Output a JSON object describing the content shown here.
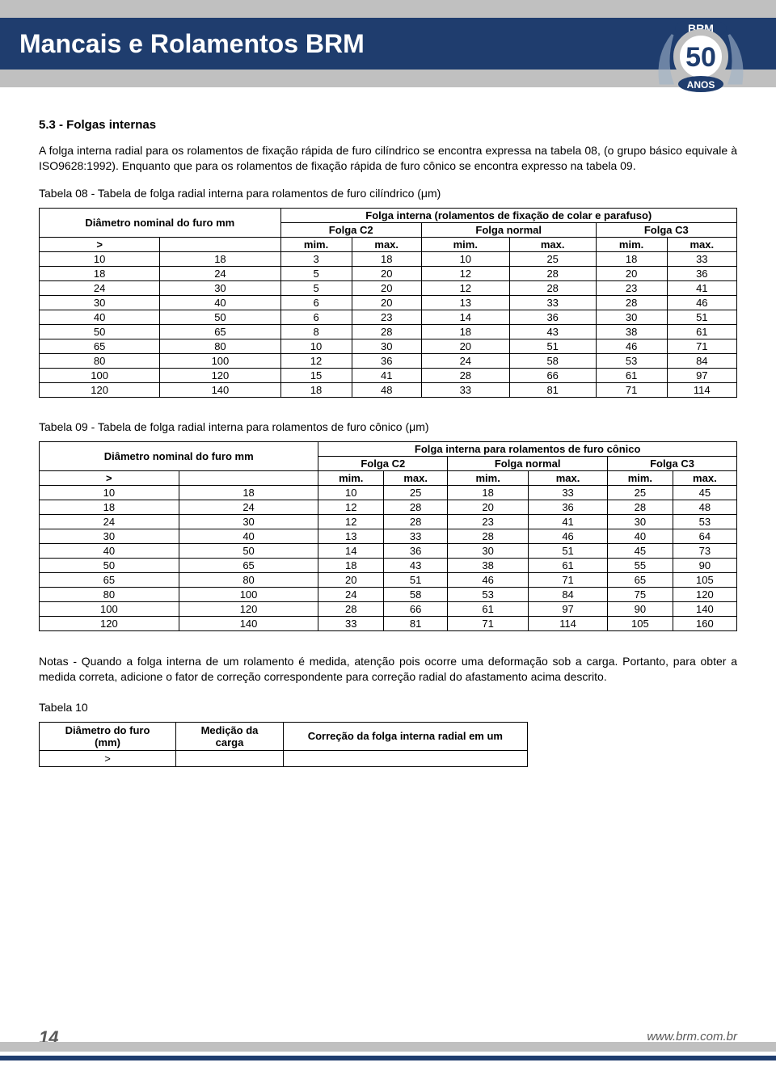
{
  "header": {
    "title": "Mancais e Rolamentos BRM",
    "logo_text_top": "BRM",
    "logo_text_mid": "50",
    "logo_text_bottom": "ANOS"
  },
  "section_title": "5.3 - Folgas internas",
  "intro_paragraph": "A folga interna radial para os rolamentos de fixação rápida de furo cilíndrico se encontra expressa na tabela 08, (o grupo básico equivale à ISO9628:1992). Enquanto que para os rolamentos de fixação rápida de furo cônico se encontra expresso na tabela 09.",
  "table08": {
    "caption": "Tabela 08 - Tabela de folga radial interna para rolamentos de furo cilíndrico (μm)",
    "row_header_label": "Diâmetro nominal do furo mm",
    "super_header": "Folga interna (rolamentos de fixação de colar e parafuso)",
    "group_headers": [
      "Folga C2",
      "Folga normal",
      "Folga C3"
    ],
    "sub_headers": [
      ">",
      "",
      "mim.",
      "max.",
      "mim.",
      "max.",
      "mim.",
      "max."
    ],
    "rows": [
      [
        "10",
        "18",
        "3",
        "18",
        "10",
        "25",
        "18",
        "33"
      ],
      [
        "18",
        "24",
        "5",
        "20",
        "12",
        "28",
        "20",
        "36"
      ],
      [
        "24",
        "30",
        "5",
        "20",
        "12",
        "28",
        "23",
        "41"
      ],
      [
        "30",
        "40",
        "6",
        "20",
        "13",
        "33",
        "28",
        "46"
      ],
      [
        "40",
        "50",
        "6",
        "23",
        "14",
        "36",
        "30",
        "51"
      ],
      [
        "50",
        "65",
        "8",
        "28",
        "18",
        "43",
        "38",
        "61"
      ],
      [
        "65",
        "80",
        "10",
        "30",
        "20",
        "51",
        "46",
        "71"
      ],
      [
        "80",
        "100",
        "12",
        "36",
        "24",
        "58",
        "53",
        "84"
      ],
      [
        "100",
        "120",
        "15",
        "41",
        "28",
        "66",
        "61",
        "97"
      ],
      [
        "120",
        "140",
        "18",
        "48",
        "33",
        "81",
        "71",
        "114"
      ]
    ]
  },
  "table09": {
    "caption": "Tabela 09 - Tabela de folga radial interna para rolamentos de furo cônico (μm)",
    "row_header_label": "Diâmetro nominal do furo mm",
    "super_header": "Folga interna para rolamentos de furo cônico",
    "group_headers": [
      "Folga C2",
      "Folga normal",
      "Folga C3"
    ],
    "sub_headers": [
      ">",
      "",
      "mim.",
      "max.",
      "mim.",
      "max.",
      "mim.",
      "max."
    ],
    "rows": [
      [
        "10",
        "18",
        "10",
        "25",
        "18",
        "33",
        "25",
        "45"
      ],
      [
        "18",
        "24",
        "12",
        "28",
        "20",
        "36",
        "28",
        "48"
      ],
      [
        "24",
        "30",
        "12",
        "28",
        "23",
        "41",
        "30",
        "53"
      ],
      [
        "30",
        "40",
        "13",
        "33",
        "28",
        "46",
        "40",
        "64"
      ],
      [
        "40",
        "50",
        "14",
        "36",
        "30",
        "51",
        "45",
        "73"
      ],
      [
        "50",
        "65",
        "18",
        "43",
        "38",
        "61",
        "55",
        "90"
      ],
      [
        "65",
        "80",
        "20",
        "51",
        "46",
        "71",
        "65",
        "105"
      ],
      [
        "80",
        "100",
        "24",
        "58",
        "53",
        "84",
        "75",
        "120"
      ],
      [
        "100",
        "120",
        "28",
        "66",
        "61",
        "97",
        "90",
        "140"
      ],
      [
        "120",
        "140",
        "33",
        "81",
        "71",
        "114",
        "105",
        "160"
      ]
    ]
  },
  "notes": "Notas - Quando a folga interna de um rolamento é medida, atenção pois ocorre uma deformação sob a carga. Portanto, para obter a medida correta, adicione o fator de correção correspondente para correção radial do afastamento acima descrito.",
  "table10": {
    "caption": "Tabela 10",
    "headers": [
      "Diâmetro do furo\n(mm)",
      "Medição da\ncarga",
      "Correção da folga interna radial em um"
    ],
    "sub_row": [
      ">"
    ]
  },
  "footer": {
    "page": "14",
    "url": "www.brm.com.br"
  },
  "colors": {
    "header_blue": "#1f3d6e",
    "gray_bar": "#c0c0c0",
    "text": "#000000",
    "footer_text": "#5a5a5a"
  }
}
